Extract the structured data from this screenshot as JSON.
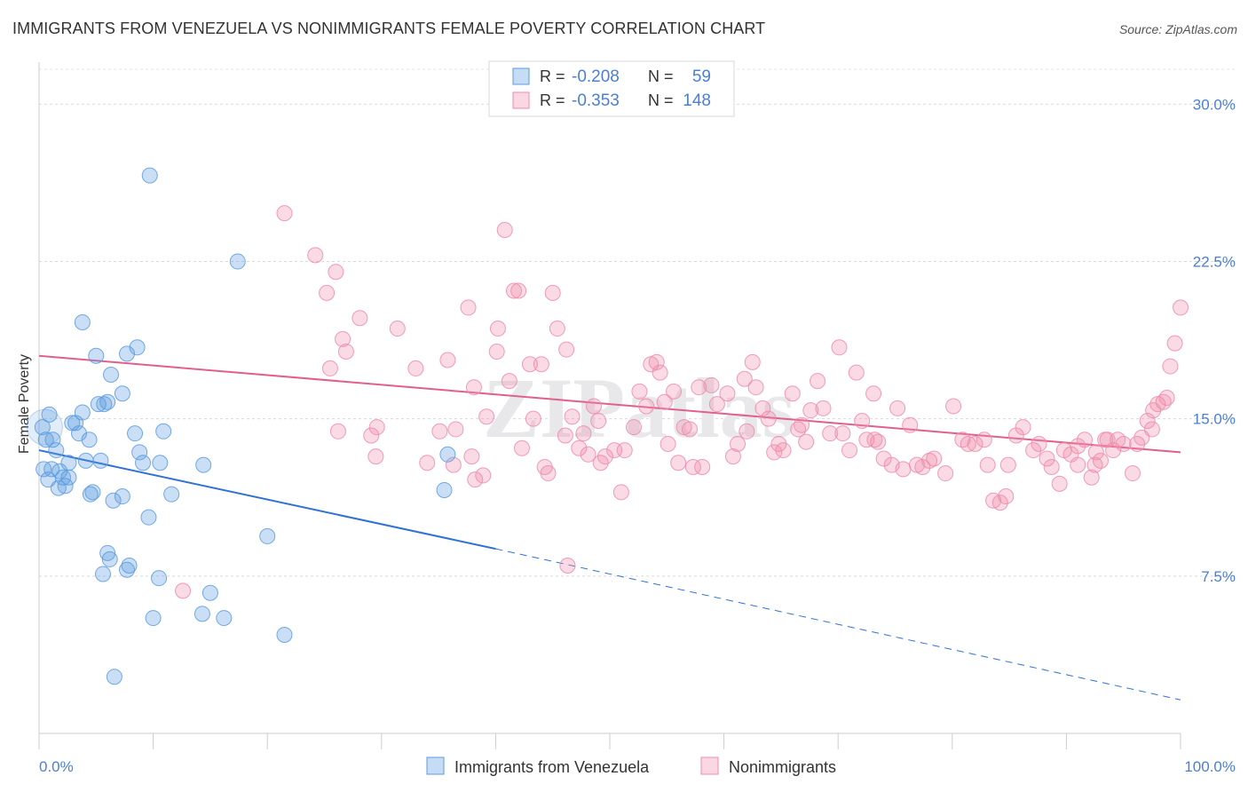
{
  "title": "IMMIGRANTS FROM VENEZUELA VS NONIMMIGRANTS FEMALE POVERTY CORRELATION CHART",
  "source": "Source: ZipAtlas.com",
  "watermark": "ZIPatlas",
  "chart_data": {
    "type": "scatter",
    "ylabel": "Female Poverty",
    "xlim": [
      0,
      100
    ],
    "ylim": [
      0,
      32
    ],
    "x_tick_labels": [
      "0.0%",
      "100.0%"
    ],
    "y_ticks": [
      7.5,
      15.0,
      22.5,
      30.0
    ],
    "y_tick_labels": [
      "7.5%",
      "15.0%",
      "22.5%",
      "30.0%"
    ],
    "grid": "horizontal dashed",
    "legend_position": "top-center",
    "legend": [
      {
        "r_label": "R =",
        "r_value": "-0.208",
        "n_label": "N =",
        "n_value": "59"
      },
      {
        "r_label": "R =",
        "r_value": "-0.353",
        "n_label": "N =",
        "n_value": "148"
      }
    ],
    "colors": {
      "blue": "#5b9be0",
      "blue_line": "#2f72d3",
      "pink": "#f08bab",
      "pink_line": "#e0608c",
      "tick_text": "#4a7fd4"
    },
    "series": [
      {
        "name": "Immigrants from Venezuela",
        "color": "#5b9be0",
        "trend": {
          "x0": 0,
          "y0": 13.5,
          "x1": 40,
          "y1": 8.8,
          "dash_to_x": 100,
          "dash_to_y": 1.6
        },
        "points": [
          [
            0.3,
            14.6
          ],
          [
            0.6,
            14.0
          ],
          [
            0.4,
            12.6
          ],
          [
            0.9,
            15.2
          ],
          [
            1.2,
            14.0
          ],
          [
            1.5,
            13.5
          ],
          [
            0.8,
            12.1
          ],
          [
            1.1,
            12.6
          ],
          [
            1.8,
            12.5
          ],
          [
            2.1,
            12.2
          ],
          [
            1.7,
            11.7
          ],
          [
            2.3,
            11.8
          ],
          [
            2.6,
            12.2
          ],
          [
            2.9,
            14.8
          ],
          [
            3.2,
            14.8
          ],
          [
            3.5,
            14.3
          ],
          [
            2.6,
            12.9
          ],
          [
            3.8,
            15.3
          ],
          [
            4.4,
            14.0
          ],
          [
            4.1,
            13.0
          ],
          [
            4.5,
            11.4
          ],
          [
            4.7,
            11.5
          ],
          [
            5.2,
            15.7
          ],
          [
            5.4,
            13.0
          ],
          [
            5.0,
            18.0
          ],
          [
            5.7,
            15.7
          ],
          [
            6.0,
            15.8
          ],
          [
            3.8,
            19.6
          ],
          [
            6.3,
            17.1
          ],
          [
            7.3,
            16.2
          ],
          [
            7.7,
            18.1
          ],
          [
            8.6,
            18.4
          ],
          [
            8.8,
            13.4
          ],
          [
            9.1,
            12.9
          ],
          [
            7.3,
            11.3
          ],
          [
            6.5,
            11.1
          ],
          [
            9.6,
            10.3
          ],
          [
            10.6,
            12.9
          ],
          [
            10.9,
            14.4
          ],
          [
            11.6,
            11.4
          ],
          [
            9.7,
            26.6
          ],
          [
            14.4,
            12.8
          ],
          [
            17.4,
            22.5
          ],
          [
            20.0,
            9.4
          ],
          [
            21.5,
            4.7
          ],
          [
            5.6,
            7.6
          ],
          [
            6.0,
            8.6
          ],
          [
            6.2,
            8.3
          ],
          [
            7.7,
            7.8
          ],
          [
            7.9,
            8.0
          ],
          [
            10.5,
            7.4
          ],
          [
            10.0,
            5.5
          ],
          [
            14.3,
            5.7
          ],
          [
            15.0,
            6.7
          ],
          [
            16.2,
            5.5
          ],
          [
            6.6,
            2.7
          ],
          [
            35.5,
            11.6
          ],
          [
            35.8,
            13.3
          ],
          [
            8.4,
            14.3
          ]
        ]
      },
      {
        "name": "Nonimmigrants",
        "color": "#f08bab",
        "trend": {
          "x0": 0,
          "y0": 18.0,
          "x1": 100,
          "y1": 13.4
        },
        "points": [
          [
            21.5,
            24.8
          ],
          [
            24.2,
            22.8
          ],
          [
            25.2,
            21.0
          ],
          [
            26.0,
            22.0
          ],
          [
            26.6,
            18.8
          ],
          [
            26.9,
            18.2
          ],
          [
            25.5,
            17.4
          ],
          [
            28.1,
            19.8
          ],
          [
            29.1,
            14.2
          ],
          [
            29.6,
            14.6
          ],
          [
            29.5,
            13.2
          ],
          [
            26.2,
            14.4
          ],
          [
            31.4,
            19.3
          ],
          [
            33.0,
            17.4
          ],
          [
            34.0,
            12.9
          ],
          [
            35.1,
            14.4
          ],
          [
            35.8,
            17.8
          ],
          [
            36.3,
            12.8
          ],
          [
            36.5,
            14.5
          ],
          [
            37.6,
            20.3
          ],
          [
            38.1,
            16.5
          ],
          [
            38.2,
            12.1
          ],
          [
            38.9,
            12.3
          ],
          [
            39.2,
            15.1
          ],
          [
            40.1,
            18.2
          ],
          [
            40.2,
            19.3
          ],
          [
            40.8,
            24.0
          ],
          [
            41.2,
            16.8
          ],
          [
            41.6,
            21.1
          ],
          [
            42.0,
            21.1
          ],
          [
            42.3,
            13.6
          ],
          [
            43.3,
            15.0
          ],
          [
            43.0,
            17.6
          ],
          [
            44.3,
            12.7
          ],
          [
            44.6,
            12.4
          ],
          [
            45.0,
            21.0
          ],
          [
            45.4,
            19.3
          ],
          [
            46.1,
            14.2
          ],
          [
            46.7,
            15.1
          ],
          [
            47.3,
            13.6
          ],
          [
            47.7,
            14.3
          ],
          [
            48.1,
            13.3
          ],
          [
            48.6,
            15.6
          ],
          [
            49.2,
            12.9
          ],
          [
            49.6,
            13.2
          ],
          [
            50.4,
            13.5
          ],
          [
            51.0,
            11.5
          ],
          [
            51.3,
            13.5
          ],
          [
            52.1,
            14.6
          ],
          [
            52.6,
            16.3
          ],
          [
            53.2,
            15.6
          ],
          [
            53.6,
            17.6
          ],
          [
            54.1,
            17.7
          ],
          [
            54.4,
            17.2
          ],
          [
            54.8,
            15.8
          ],
          [
            55.6,
            16.3
          ],
          [
            55.1,
            13.8
          ],
          [
            56.0,
            12.9
          ],
          [
            56.5,
            14.6
          ],
          [
            57.3,
            12.7
          ],
          [
            57.8,
            16.5
          ],
          [
            58.1,
            12.7
          ],
          [
            58.9,
            16.6
          ],
          [
            59.4,
            15.7
          ],
          [
            60.3,
            16.2
          ],
          [
            60.8,
            13.2
          ],
          [
            61.2,
            13.8
          ],
          [
            62.0,
            14.4
          ],
          [
            62.5,
            17.7
          ],
          [
            62.8,
            16.5
          ],
          [
            63.4,
            15.5
          ],
          [
            63.9,
            15.0
          ],
          [
            64.4,
            13.4
          ],
          [
            64.8,
            13.8
          ],
          [
            65.2,
            13.5
          ],
          [
            66.0,
            16.2
          ],
          [
            66.8,
            14.7
          ],
          [
            67.2,
            13.9
          ],
          [
            67.6,
            15.4
          ],
          [
            68.2,
            16.8
          ],
          [
            68.7,
            15.5
          ],
          [
            69.3,
            14.3
          ],
          [
            70.1,
            18.4
          ],
          [
            70.4,
            14.3
          ],
          [
            71.0,
            13.5
          ],
          [
            71.6,
            17.2
          ],
          [
            72.1,
            14.9
          ],
          [
            72.5,
            14.0
          ],
          [
            73.1,
            16.2
          ],
          [
            73.5,
            13.9
          ],
          [
            74.0,
            13.1
          ],
          [
            74.7,
            12.8
          ],
          [
            75.2,
            15.5
          ],
          [
            75.7,
            12.6
          ],
          [
            76.3,
            14.7
          ],
          [
            76.9,
            12.8
          ],
          [
            77.4,
            12.7
          ],
          [
            78.0,
            13.0
          ],
          [
            78.4,
            13.1
          ],
          [
            79.4,
            12.4
          ],
          [
            80.1,
            15.6
          ],
          [
            80.9,
            14.0
          ],
          [
            81.4,
            13.8
          ],
          [
            82.0,
            13.8
          ],
          [
            82.8,
            14.0
          ],
          [
            83.1,
            12.8
          ],
          [
            83.6,
            11.1
          ],
          [
            84.2,
            11.0
          ],
          [
            84.7,
            11.3
          ],
          [
            84.9,
            12.8
          ],
          [
            85.6,
            14.2
          ],
          [
            86.2,
            14.6
          ],
          [
            87.1,
            13.5
          ],
          [
            87.6,
            13.8
          ],
          [
            88.3,
            13.1
          ],
          [
            88.7,
            12.7
          ],
          [
            89.4,
            11.9
          ],
          [
            89.8,
            13.5
          ],
          [
            90.4,
            13.3
          ],
          [
            91.0,
            12.8
          ],
          [
            91.6,
            14.0
          ],
          [
            92.2,
            12.2
          ],
          [
            92.5,
            12.8
          ],
          [
            93.0,
            13.0
          ],
          [
            93.6,
            14.0
          ],
          [
            94.1,
            13.5
          ],
          [
            94.5,
            14.0
          ],
          [
            95.0,
            13.8
          ],
          [
            95.8,
            12.4
          ],
          [
            96.2,
            13.8
          ],
          [
            96.6,
            14.1
          ],
          [
            97.1,
            14.9
          ],
          [
            97.6,
            15.4
          ],
          [
            98.0,
            15.7
          ],
          [
            98.5,
            15.8
          ],
          [
            98.8,
            16.0
          ],
          [
            99.1,
            17.5
          ],
          [
            99.5,
            18.6
          ],
          [
            100.0,
            20.3
          ],
          [
            91.0,
            13.7
          ],
          [
            92.6,
            13.4
          ],
          [
            93.4,
            14.0
          ],
          [
            73.2,
            14.0
          ],
          [
            66.5,
            14.5
          ],
          [
            46.2,
            18.3
          ],
          [
            49.0,
            14.9
          ],
          [
            61.8,
            16.9
          ],
          [
            57.0,
            14.5
          ],
          [
            44.0,
            17.6
          ],
          [
            12.6,
            6.8
          ],
          [
            46.3,
            8.0
          ],
          [
            37.9,
            13.2
          ],
          [
            97.5,
            14.5
          ]
        ]
      }
    ]
  }
}
